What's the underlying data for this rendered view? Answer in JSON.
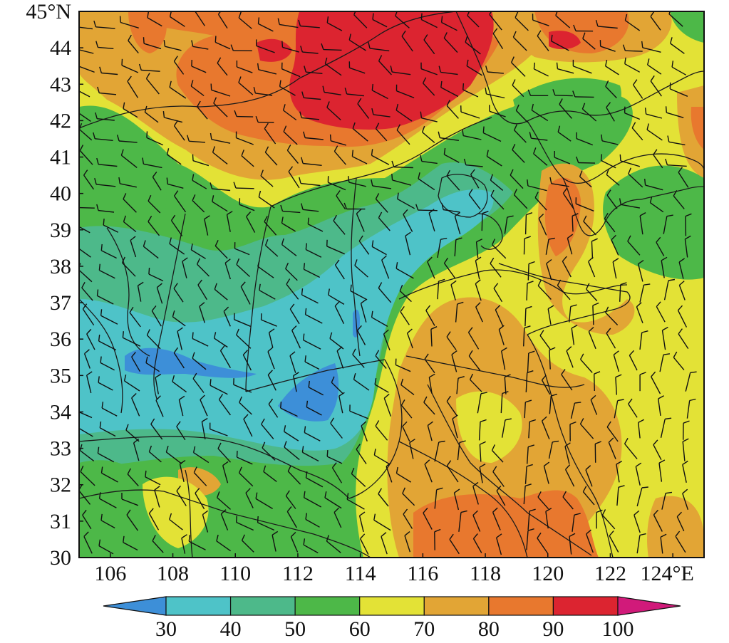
{
  "map": {
    "lat_axis": {
      "ticks": [
        {
          "value": 45,
          "label": "45°N"
        },
        {
          "value": 44,
          "label": "44"
        },
        {
          "value": 43,
          "label": "43"
        },
        {
          "value": 42,
          "label": "42"
        },
        {
          "value": 41,
          "label": "41"
        },
        {
          "value": 40,
          "label": "40"
        },
        {
          "value": 39,
          "label": "39"
        },
        {
          "value": 38,
          "label": "38"
        },
        {
          "value": 37,
          "label": "37"
        },
        {
          "value": 36,
          "label": "36"
        },
        {
          "value": 35,
          "label": "35"
        },
        {
          "value": 34,
          "label": "34"
        },
        {
          "value": 33,
          "label": "33"
        },
        {
          "value": 32,
          "label": "32"
        },
        {
          "value": 31,
          "label": "31"
        },
        {
          "value": 30,
          "label": "30"
        }
      ],
      "range": [
        30,
        45
      ]
    },
    "lon_axis": {
      "ticks": [
        {
          "value": 106,
          "label": "106"
        },
        {
          "value": 108,
          "label": "108"
        },
        {
          "value": 110,
          "label": "110"
        },
        {
          "value": 112,
          "label": "112"
        },
        {
          "value": 114,
          "label": "114"
        },
        {
          "value": 116,
          "label": "116"
        },
        {
          "value": 118,
          "label": "118"
        },
        {
          "value": 120,
          "label": "120"
        },
        {
          "value": 122,
          "label": "122"
        },
        {
          "value": 124,
          "label": "124°E"
        }
      ],
      "range": [
        105,
        125
      ]
    },
    "field_type": "filled contours with wind barbs and province boundaries"
  },
  "colorbar": {
    "levels": [
      30,
      40,
      50,
      60,
      70,
      80,
      90,
      100
    ],
    "labels": [
      "30",
      "40",
      "50",
      "60",
      "70",
      "80",
      "90",
      "100"
    ],
    "colors": {
      "below": "#3d8fd8",
      "c30_40": "#4ec3c8",
      "c40_50": "#4db98a",
      "c50_60": "#4db848",
      "c60_70": "#e3e236",
      "c70_80": "#e2a535",
      "c80_90": "#e8782e",
      "c90_100": "#dc2430",
      "above": "#d11a7a"
    },
    "extend": "both"
  }
}
